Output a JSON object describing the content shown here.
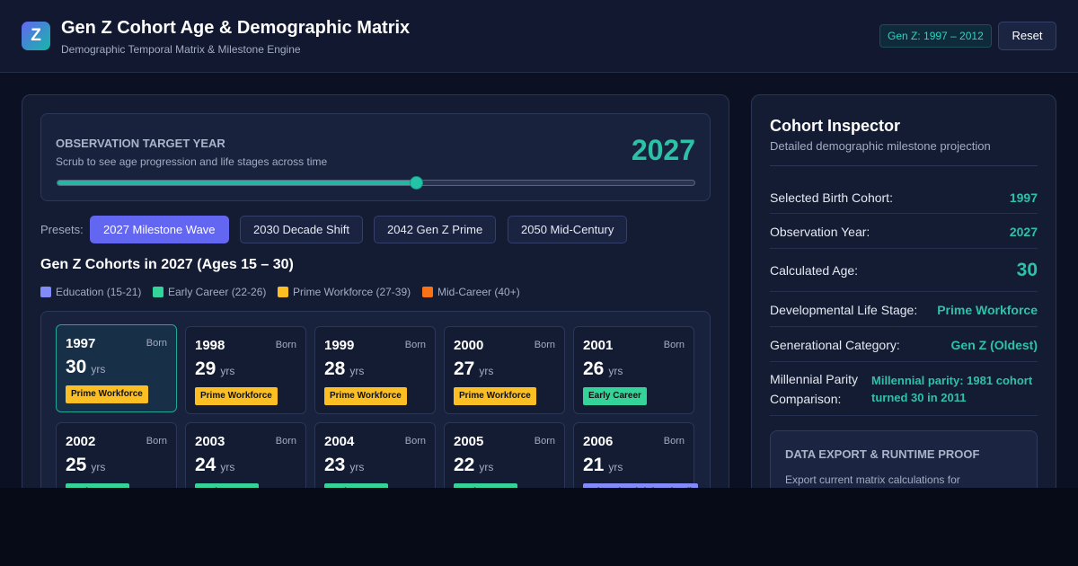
{
  "header": {
    "logo": "Z",
    "title": "Gen Z Cohort Age & Demographic Matrix",
    "subtitle": "Demographic Temporal Matrix & Milestone Engine",
    "badge": "Gen Z: 1997 – 2012",
    "reset": "Reset"
  },
  "observation": {
    "label": "OBSERVATION TARGET YEAR",
    "hint": "Scrub to see age progression and life stages across time",
    "year": "2027"
  },
  "presets": {
    "label": "Presets:",
    "items": [
      "2027 Milestone Wave",
      "2030 Decade Shift",
      "2042 Gen Z Prime",
      "2050 Mid-Century"
    ]
  },
  "cohorts": {
    "heading": "Gen Z Cohorts in 2027 (Ages 15 – 30)",
    "born_label": "Born",
    "age_unit": "yrs",
    "legend": [
      {
        "name": "Education (15-21)",
        "color": "#818cf8"
      },
      {
        "name": "Early Career (22-26)",
        "color": "#34d399"
      },
      {
        "name": "Prime Workforce (27-39)",
        "color": "#fbbf24"
      },
      {
        "name": "Mid-Career (40+)",
        "color": "#f97316"
      }
    ],
    "cards": [
      {
        "year": "1997",
        "age": "30",
        "stage": "Prime Workforce",
        "color": "#fbbf24"
      },
      {
        "year": "1998",
        "age": "29",
        "stage": "Prime Workforce",
        "color": "#fbbf24"
      },
      {
        "year": "1999",
        "age": "28",
        "stage": "Prime Workforce",
        "color": "#fbbf24"
      },
      {
        "year": "2000",
        "age": "27",
        "stage": "Prime Workforce",
        "color": "#fbbf24"
      },
      {
        "year": "2001",
        "age": "26",
        "stage": "Early Career",
        "color": "#34d399"
      },
      {
        "year": "2002",
        "age": "25",
        "stage": "Early Career",
        "color": "#34d399"
      },
      {
        "year": "2003",
        "age": "24",
        "stage": "Early Career",
        "color": "#34d399"
      },
      {
        "year": "2004",
        "age": "23",
        "stage": "Early Career",
        "color": "#34d399"
      },
      {
        "year": "2005",
        "age": "22",
        "stage": "Early Career",
        "color": "#34d399"
      },
      {
        "year": "2006",
        "age": "21",
        "stage": "Education (High School)",
        "color": "#818cf8"
      }
    ]
  },
  "inspector": {
    "title": "Cohort Inspector",
    "subtitle": "Detailed demographic milestone projection",
    "rows": [
      {
        "label": "Selected Birth Cohort:",
        "value": "1997"
      },
      {
        "label": "Observation Year:",
        "value": "2027"
      },
      {
        "label": "Calculated Age:",
        "value": "30"
      },
      {
        "label": "Developmental Life Stage:",
        "value": "Prime Workforce"
      },
      {
        "label": "Generational Category:",
        "value": "Gen Z (Oldest)"
      },
      {
        "label": "Millennial Parity Comparison:",
        "value": "Millennial parity: 1981 cohort turned 30 in 2011"
      }
    ],
    "export": {
      "title": "DATA EXPORT & RUNTIME PROOF",
      "text": "Export current matrix calculations for"
    }
  }
}
